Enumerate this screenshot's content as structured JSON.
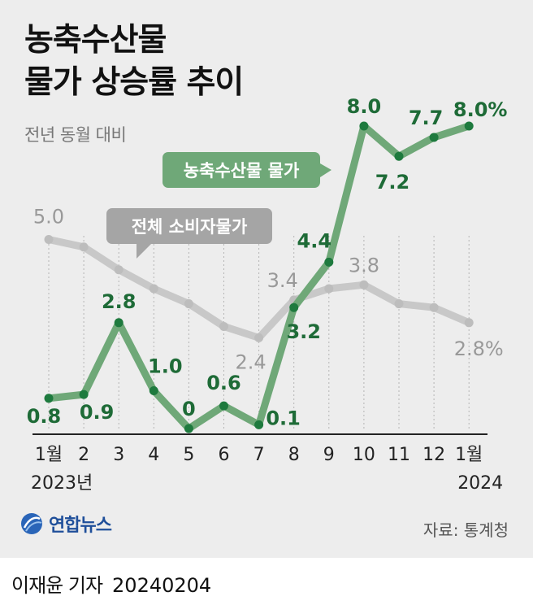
{
  "title_line1": "농축수산물",
  "title_line2": "물가 상승률 추이",
  "subtitle": "전년 동월 대비",
  "source": "자료: 통계청",
  "logo_text": "연합뉴스",
  "reporter": "이재윤 기자",
  "date": "20240204",
  "chart_data": {
    "type": "line",
    "title": "농축수산물 물가 상승률 추이",
    "categories": [
      "1월",
      "2",
      "3",
      "4",
      "5",
      "6",
      "7",
      "8",
      "9",
      "10",
      "11",
      "12",
      "1월"
    ],
    "year_labels": {
      "start": "2023년",
      "end": "2024"
    },
    "ylim": [
      0,
      9
    ],
    "series": [
      {
        "name": "농축수산물 물가",
        "color": "#6fa878",
        "label_color": "#1e6b37",
        "values": [
          0.8,
          0.9,
          2.8,
          1.0,
          0,
          0.6,
          0.1,
          3.2,
          4.4,
          8.0,
          7.2,
          7.7,
          8.0
        ],
        "labels": [
          "0.8",
          "0.9",
          "2.8",
          "1.0",
          "0",
          "0.6",
          "0.1",
          "3.2",
          "4.4",
          "8.0",
          "7.2",
          "7.7",
          "8.0%"
        ]
      },
      {
        "name": "전체 소비자물가",
        "color": "#c8c8c8",
        "label_color": "#999999",
        "values": [
          5.0,
          4.8,
          4.2,
          3.7,
          3.3,
          2.7,
          2.4,
          3.4,
          3.7,
          3.8,
          3.3,
          3.2,
          2.8
        ],
        "labels": [
          "5.0",
          "",
          "",
          "",
          "",
          "",
          "2.4",
          "3.4",
          "",
          "3.8",
          "",
          "",
          "2.8%"
        ]
      }
    ]
  }
}
